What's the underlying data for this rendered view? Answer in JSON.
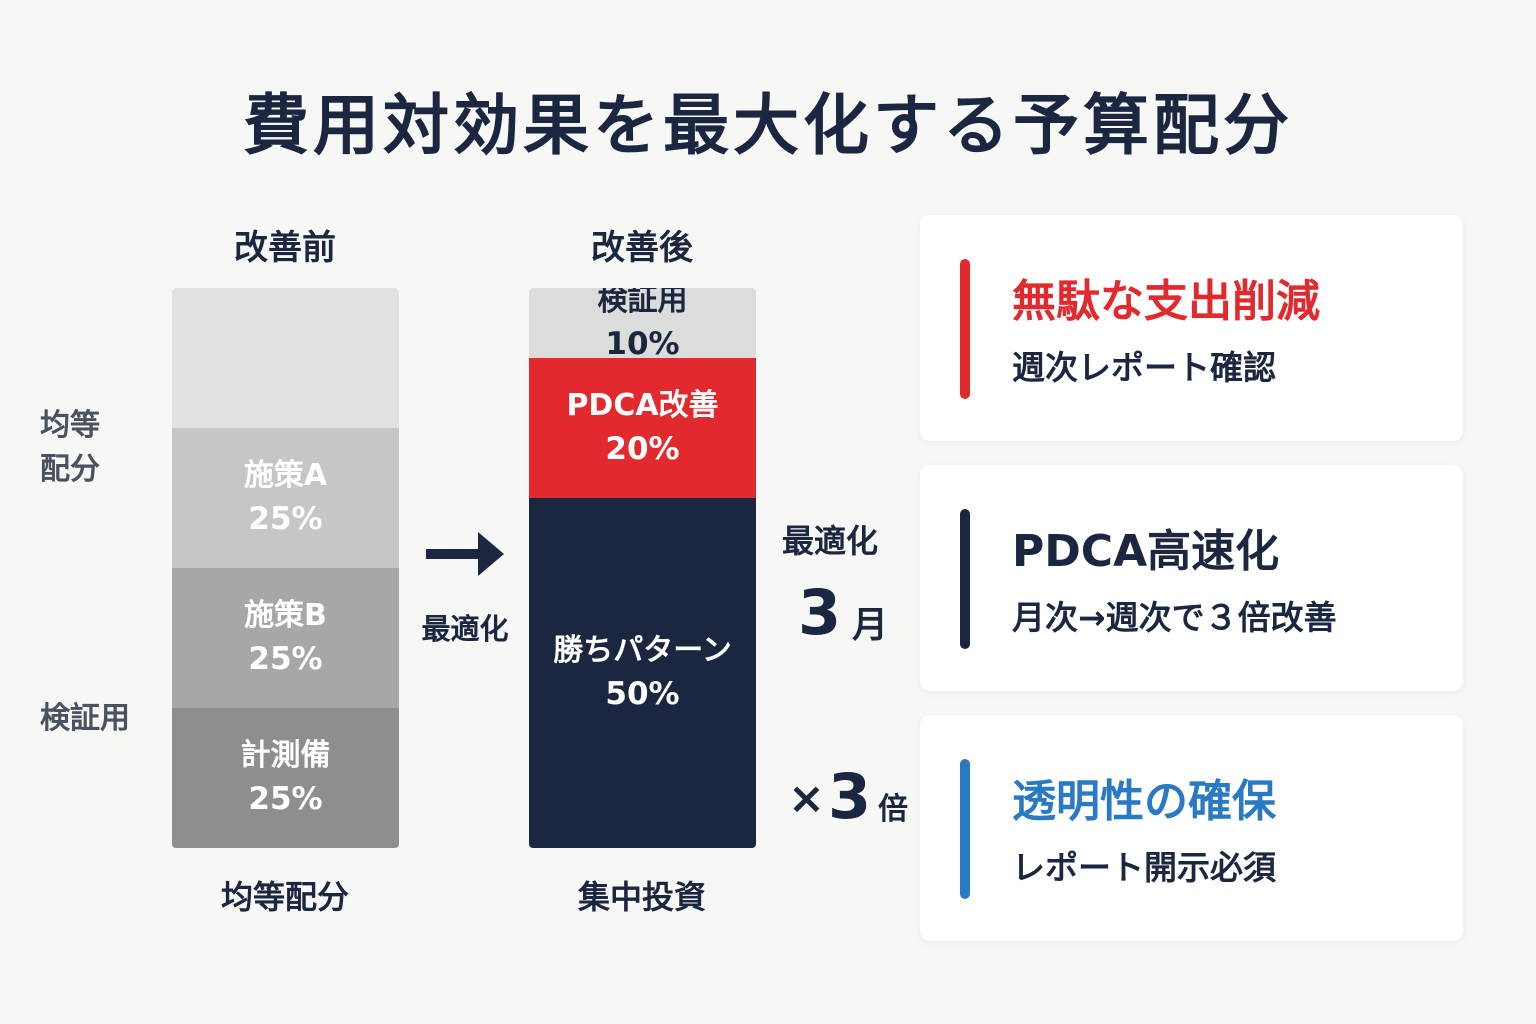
{
  "title": "費用対効果を最大化する予算配分",
  "before": {
    "heading": "改善前",
    "footer": "均等配分",
    "side_labels": [
      "均等\n配分",
      "検証用"
    ],
    "segments": [
      {
        "label": "",
        "percent": "",
        "value": 25,
        "color": "#e1e1df",
        "text_color": "#ffffff"
      },
      {
        "label": "施策A",
        "percent": "25%",
        "value": 25,
        "color": "#c6c6c4",
        "text_color": "#ffffff"
      },
      {
        "label": "施策B",
        "percent": "25%",
        "value": 25,
        "color": "#a7a7a5",
        "text_color": "#ffffff"
      },
      {
        "label": "計測備",
        "percent": "25%",
        "value": 25,
        "color": "#8e8e8c",
        "text_color": "#ffffff"
      }
    ]
  },
  "arrow": {
    "label": "最適化"
  },
  "after": {
    "heading": "改善後",
    "footer": "集中投資",
    "segments": [
      {
        "label": "検証用",
        "percent": "10%",
        "value": 10,
        "color": "#dcdcda",
        "text_color": "#1b2640"
      },
      {
        "label": "PDCA改善",
        "percent": "20%",
        "value": 20,
        "color": "#e2292d",
        "text_color": "#ffffff"
      },
      {
        "label": "勝ちパターン",
        "percent": "50%",
        "value": 50,
        "color": "#1b2640",
        "text_color": "#ffffff"
      }
    ]
  },
  "stats": {
    "optimize_label": "最適化",
    "months_number": "3",
    "months_unit": "月",
    "multiplier_prefix": "×",
    "multiplier_number": "3",
    "multiplier_unit": "倍"
  },
  "cards": [
    {
      "title": "無駄な支出削減",
      "subtitle": "週次レポート確認",
      "accent": "#e2292d",
      "title_color": "#e2292d"
    },
    {
      "title": "PDCA高速化",
      "subtitle": "月次→週次で３倍改善",
      "accent": "#1b2640",
      "title_color": "#1b2640"
    },
    {
      "title": "透明性の確保",
      "subtitle": "レポート開示必須",
      "accent": "#2a79c4",
      "title_color": "#2a79c4"
    }
  ]
}
